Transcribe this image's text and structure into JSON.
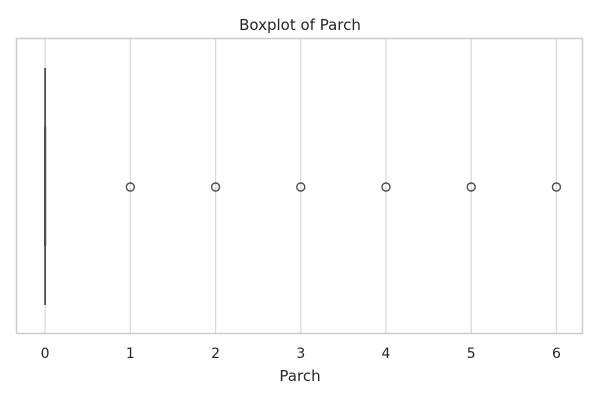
{
  "chart_data": {
    "type": "boxplot",
    "orientation": "horizontal",
    "title": "Boxplot of Parch",
    "xlabel": "Parch",
    "ylabel": "",
    "xlim": [
      -0.33,
      6.3
    ],
    "xticks": [
      0,
      1,
      2,
      3,
      4,
      5,
      6
    ],
    "xtick_labels": [
      "0",
      "1",
      "2",
      "3",
      "4",
      "5",
      "6"
    ],
    "grid": "vertical",
    "box": {
      "min": 0,
      "q1": 0,
      "median": 0,
      "q3": 0,
      "max": 0
    },
    "outliers": [
      1,
      2,
      3,
      4,
      5,
      6
    ],
    "colors": {
      "grid": "#d9d9d9",
      "frame": "#cccccc",
      "box_line": "#4d4d4d",
      "text": "#262626"
    }
  }
}
